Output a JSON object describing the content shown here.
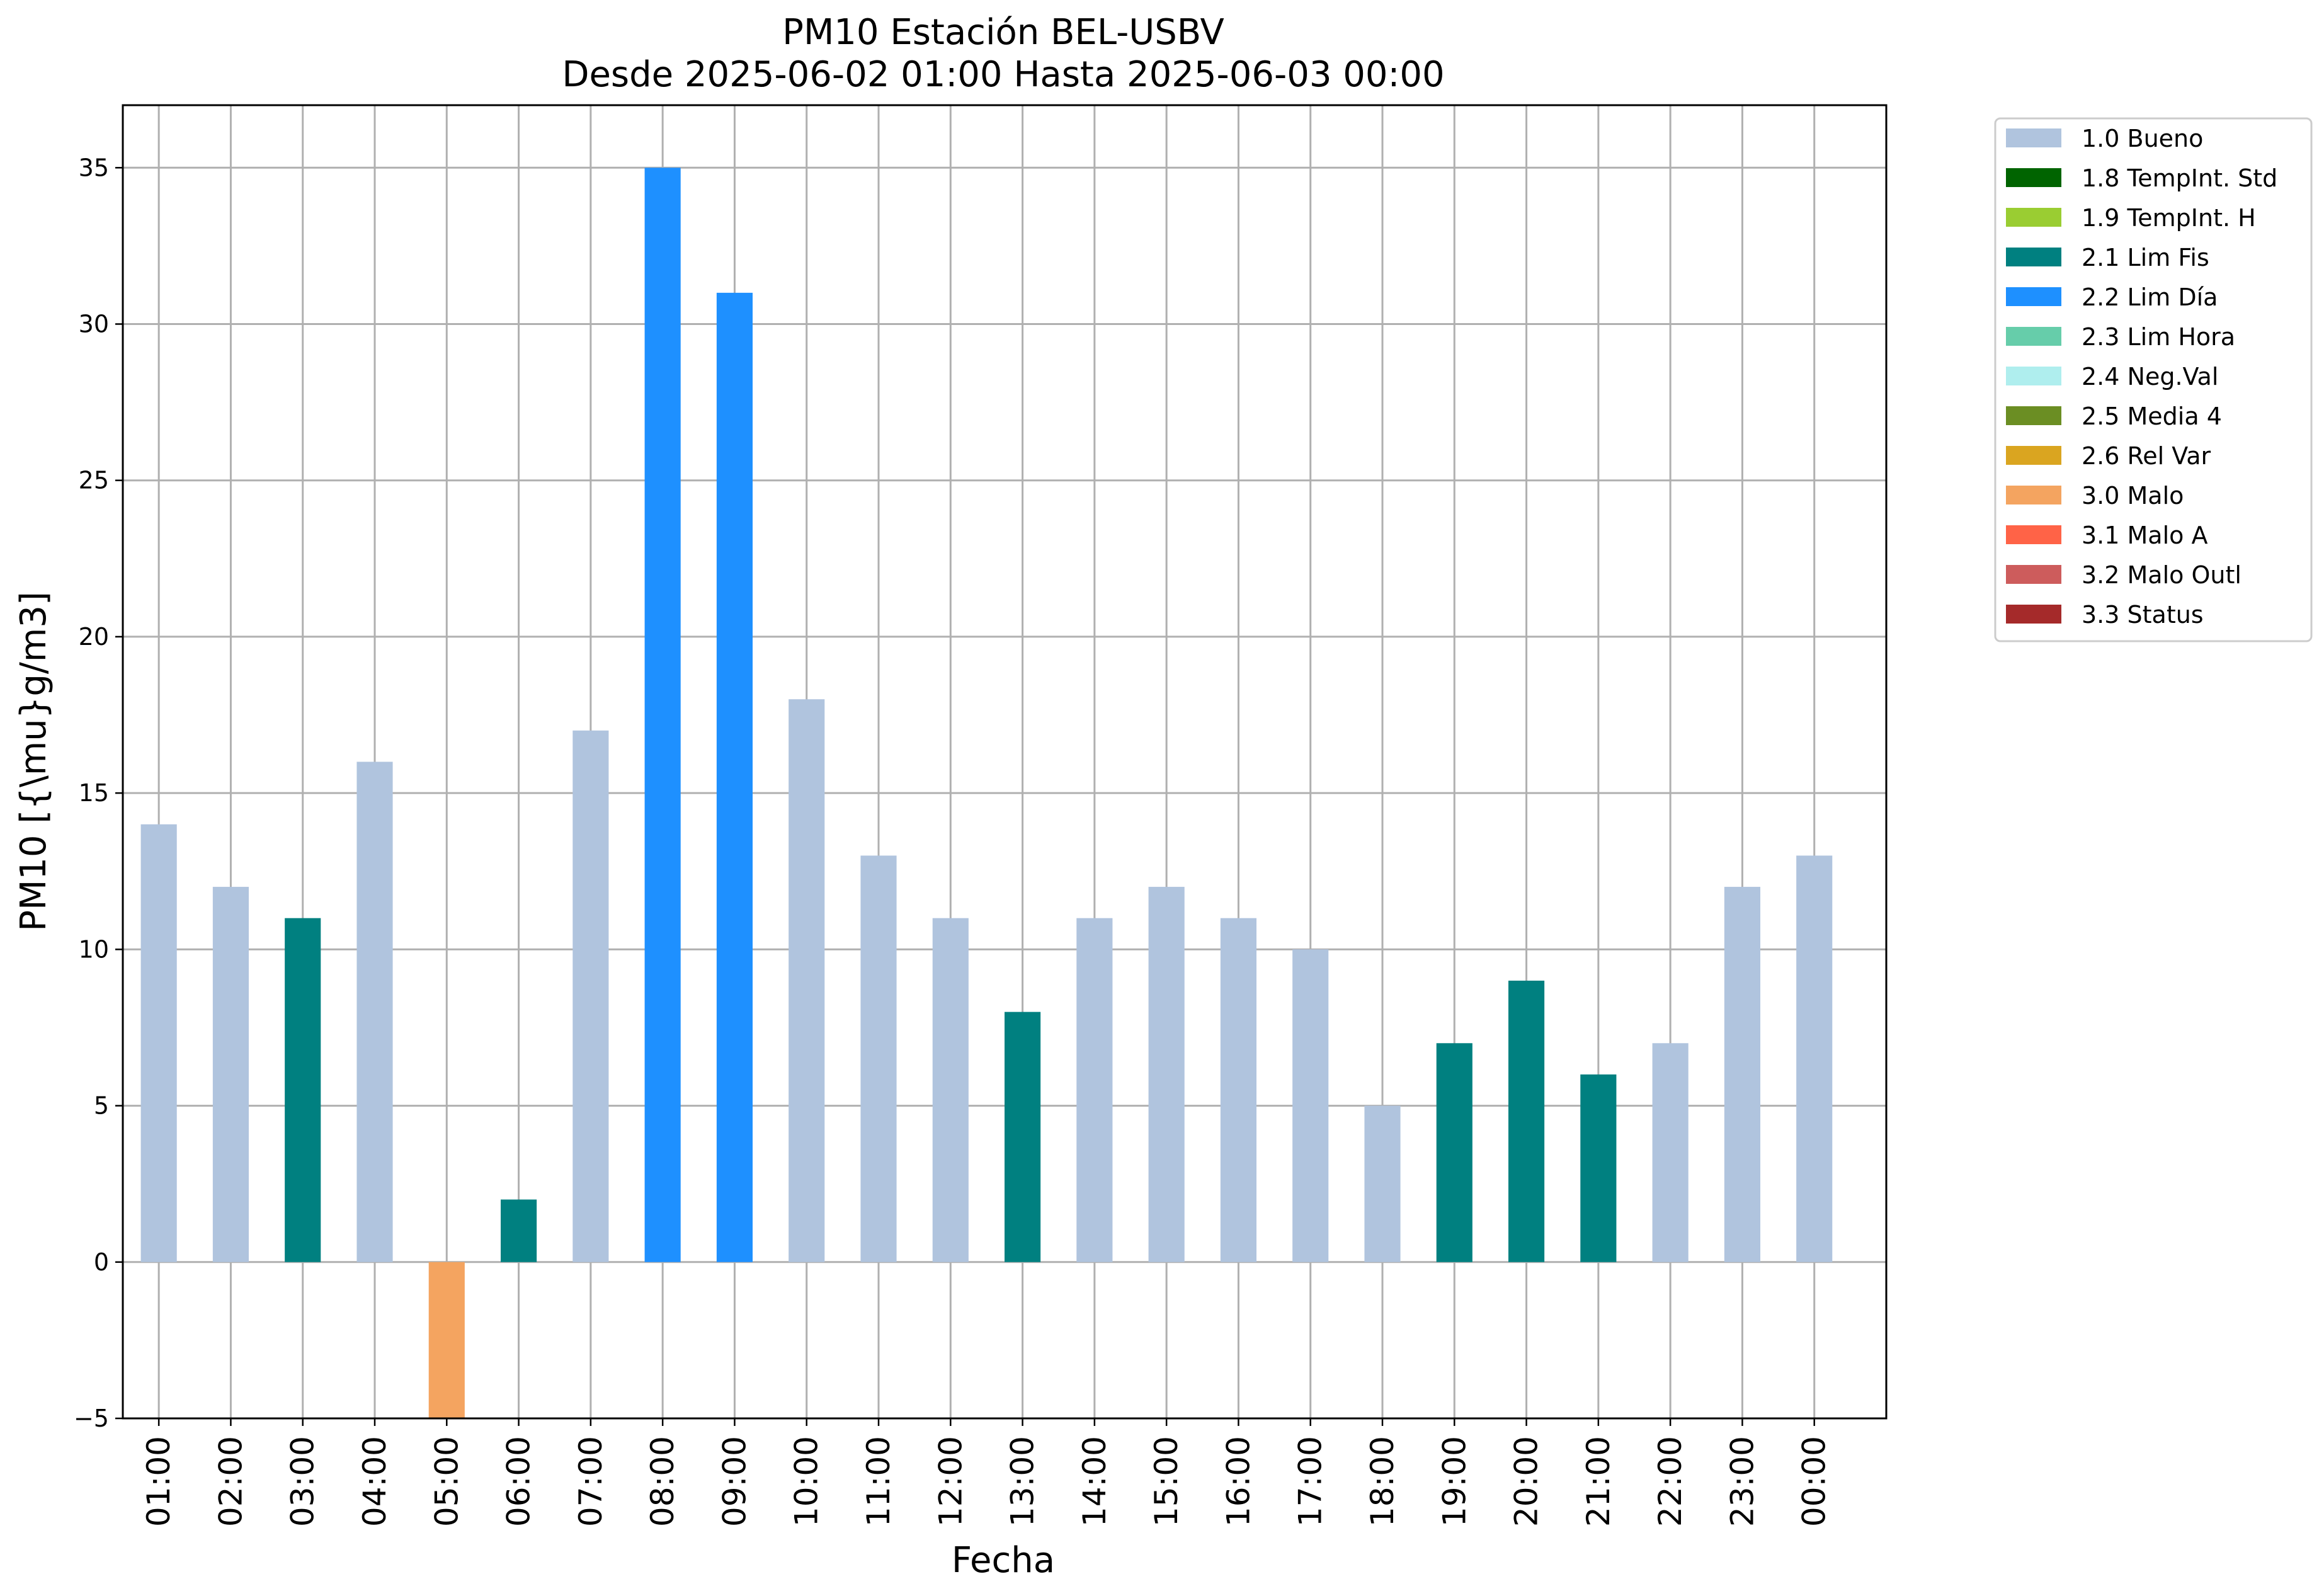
{
  "chart_data": {
    "type": "bar",
    "title": "PM10 Estación BEL-USBV",
    "subtitle": "Desde 2025-06-02 01:00 Hasta 2025-06-03 00:00",
    "xlabel": "Fecha",
    "ylabel": "PM10 [{\\mu}g/m3]",
    "ylim": [
      -5,
      37
    ],
    "yticks": [
      -5,
      0,
      5,
      10,
      15,
      20,
      25,
      30,
      35
    ],
    "grid": true,
    "legend_placement": "outside top-right",
    "categories": [
      "01:00",
      "02:00",
      "03:00",
      "04:00",
      "05:00",
      "06:00",
      "07:00",
      "08:00",
      "09:00",
      "10:00",
      "11:00",
      "12:00",
      "13:00",
      "14:00",
      "15:00",
      "16:00",
      "17:00",
      "18:00",
      "19:00",
      "20:00",
      "21:00",
      "22:00",
      "23:00",
      "00:00"
    ],
    "values": [
      14,
      12,
      11,
      16,
      -5,
      2,
      17,
      35,
      31,
      18,
      13,
      11,
      8,
      11,
      12,
      11,
      10,
      5,
      7,
      9,
      6,
      7,
      12,
      13
    ],
    "flags": [
      "1.0 Bueno",
      "1.0 Bueno",
      "2.1 Lim Fis",
      "1.0 Bueno",
      "3.0 Malo",
      "2.1 Lim Fis",
      "1.0 Bueno",
      "2.2 Lim Día",
      "2.2 Lim Día",
      "1.0 Bueno",
      "1.0 Bueno",
      "1.0 Bueno",
      "2.1 Lim Fis",
      "1.0 Bueno",
      "1.0 Bueno",
      "1.0 Bueno",
      "1.0 Bueno",
      "1.0 Bueno",
      "2.1 Lim Fis",
      "2.1 Lim Fis",
      "2.1 Lim Fis",
      "1.0 Bueno",
      "1.0 Bueno",
      "1.0 Bueno"
    ],
    "legend": [
      {
        "label": "1.0 Bueno",
        "color": "#b0c4de"
      },
      {
        "label": "1.8 TempInt. Std",
        "color": "#006400"
      },
      {
        "label": "1.9 TempInt. H",
        "color": "#9acd32"
      },
      {
        "label": "2.1 Lim Fis",
        "color": "#008080"
      },
      {
        "label": "2.2 Lim Día",
        "color": "#1e90ff"
      },
      {
        "label": "2.3 Lim Hora",
        "color": "#66cdaa"
      },
      {
        "label": "2.4 Neg.Val",
        "color": "#afeeee"
      },
      {
        "label": "2.5 Media 4",
        "color": "#6b8e23"
      },
      {
        "label": "2.6 Rel Var",
        "color": "#daa520"
      },
      {
        "label": "3.0 Malo",
        "color": "#f4a460"
      },
      {
        "label": "3.1 Malo A",
        "color": "#ff6347"
      },
      {
        "label": "3.2 Malo Outl",
        "color": "#cd5c5c"
      },
      {
        "label": "3.3 Status",
        "color": "#a52a2a"
      }
    ]
  }
}
